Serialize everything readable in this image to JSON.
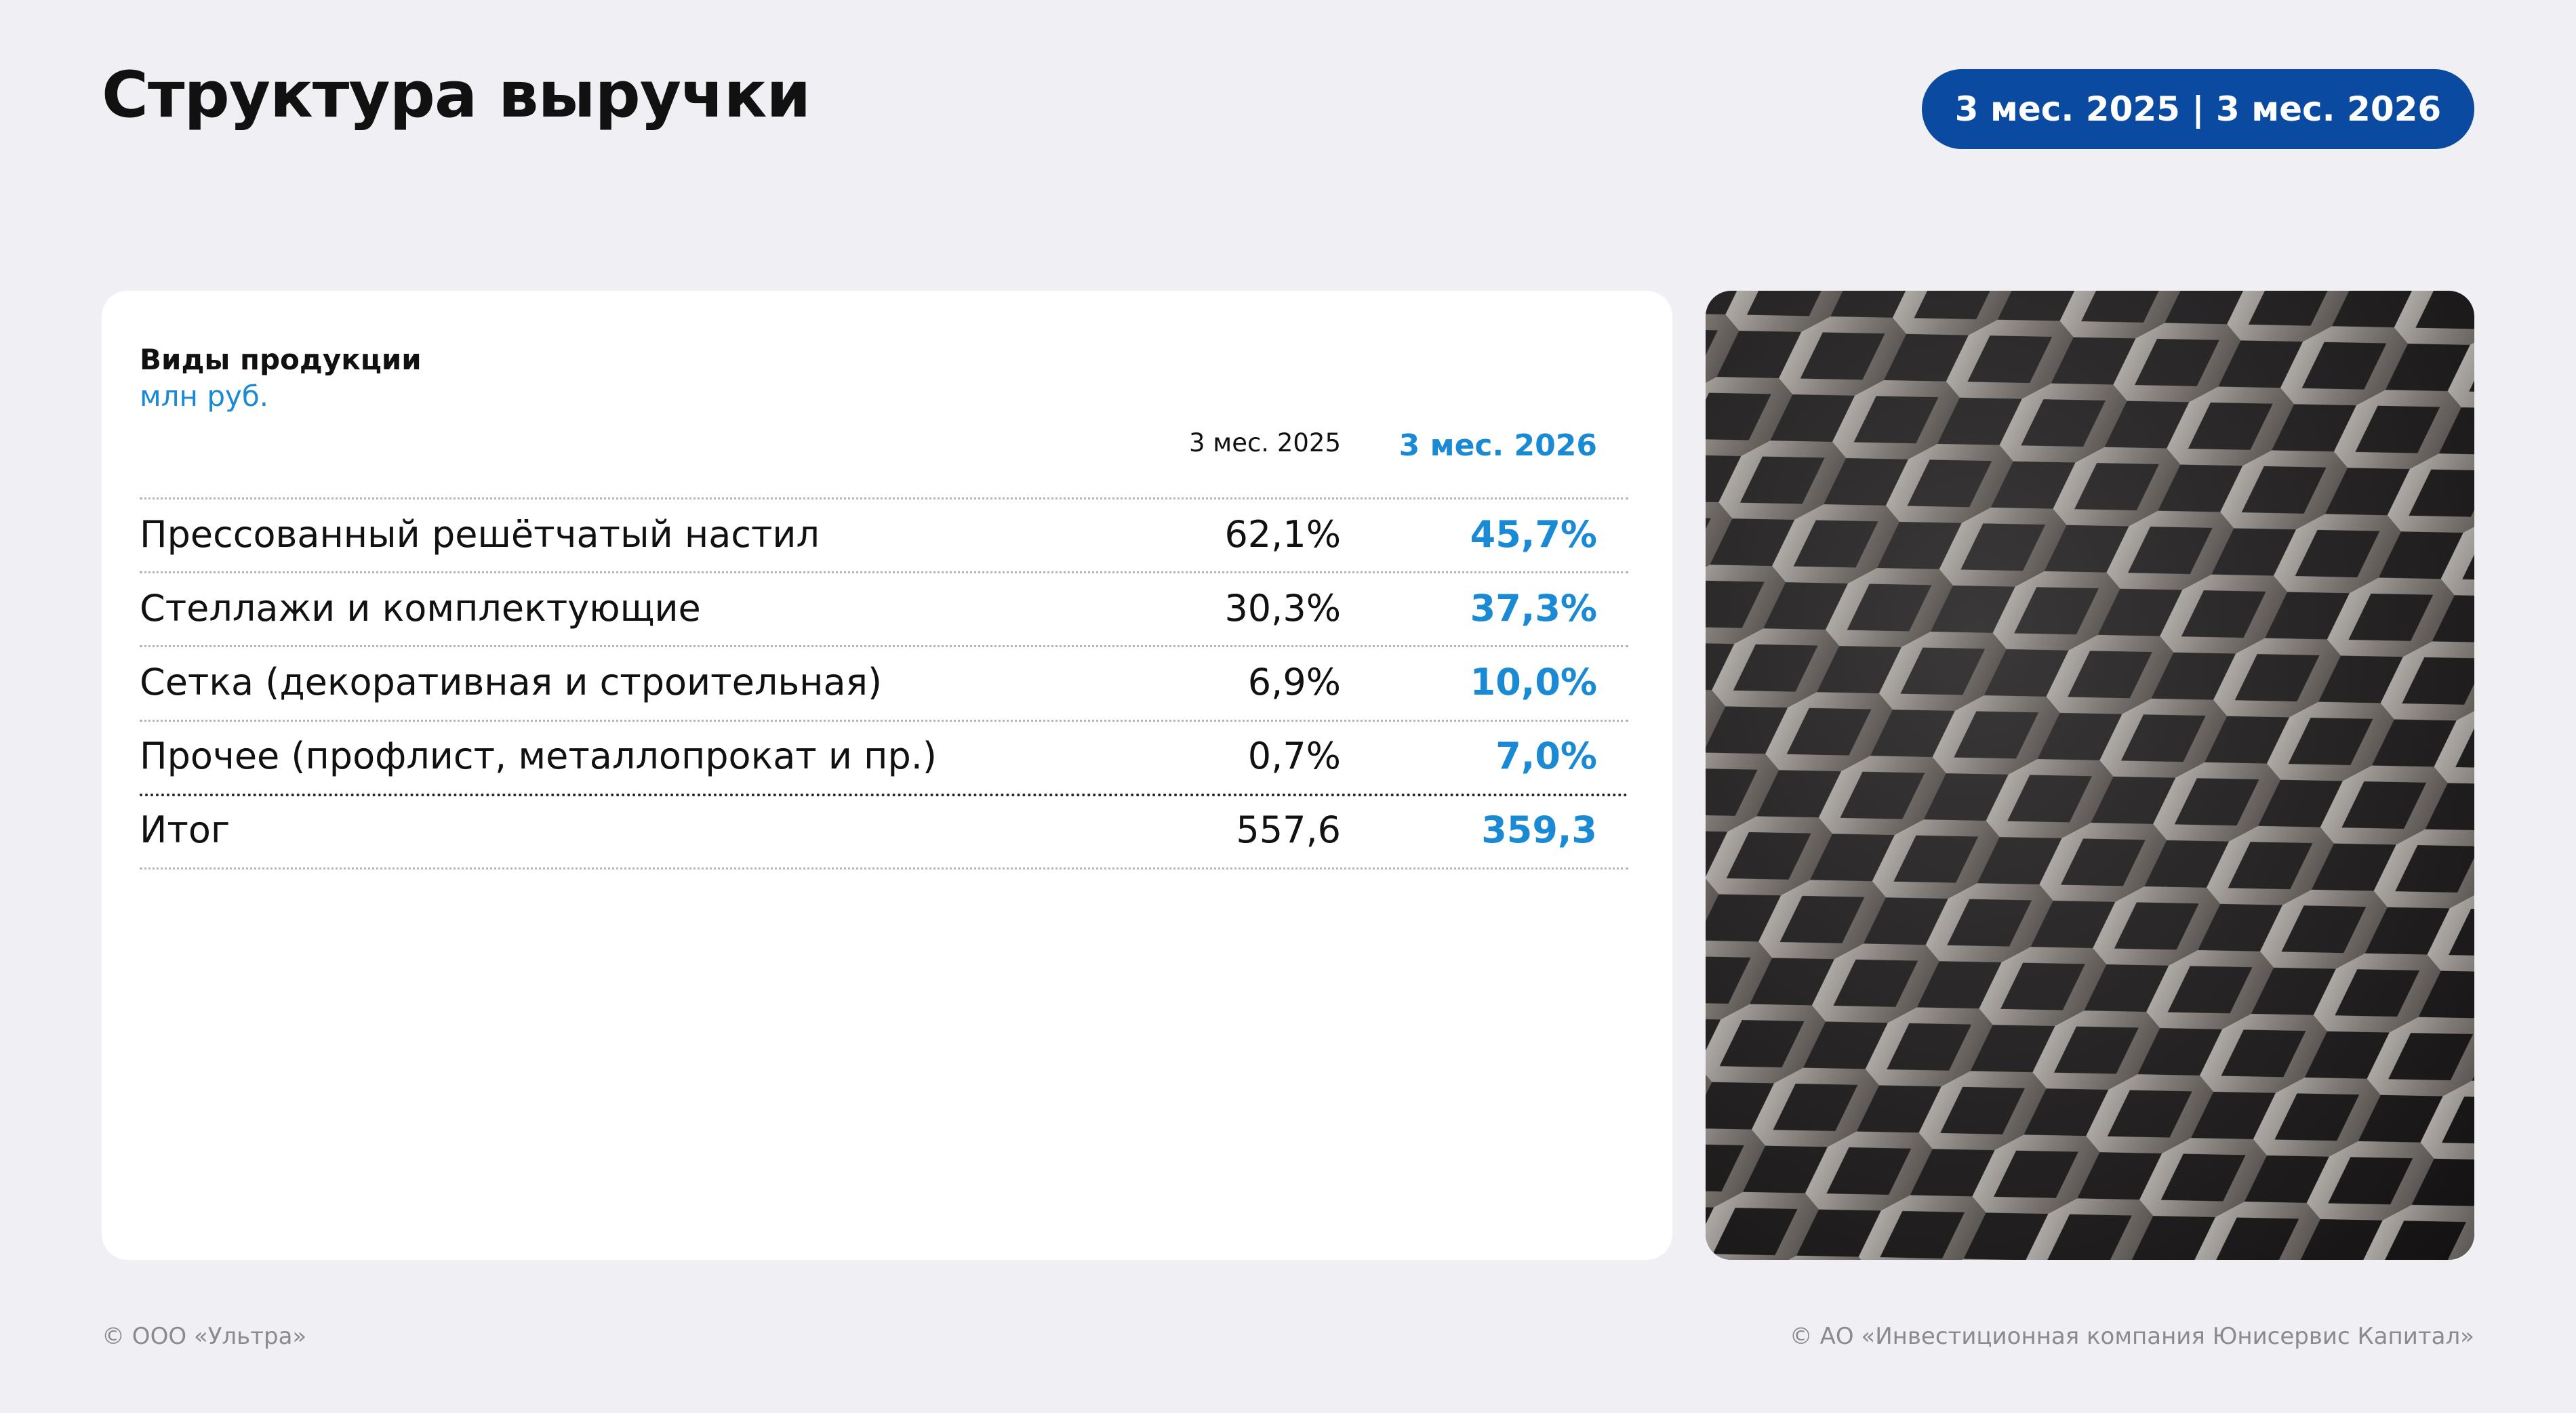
{
  "header": {
    "title": "Структура выручки",
    "period": "3 мес. 2025 | 3 мес. 2026"
  },
  "table": {
    "title": "Виды продукции",
    "unit": "млн руб.",
    "columns": [
      "3 мес. 2025",
      "3 мес. 2026"
    ],
    "rows": [
      [
        "Прессованный решётчатый настил",
        "62,1%",
        "45,7%"
      ],
      [
        "Стеллажи и комплектующие",
        "30,3%",
        "37,3%"
      ],
      [
        "Сетка (декоративная и строительная)",
        "6,9%",
        "10,0%"
      ],
      [
        "Прочее (профлист, металлопрокат и пр.)",
        "0,7%",
        "7,0%"
      ],
      [
        "Итог",
        "557,6",
        "359,3"
      ]
    ]
  },
  "footer": {
    "left": "© ООО «Ультра»",
    "right": "© АО «Инвестиционная компания Юнисервис Капитал»"
  }
}
